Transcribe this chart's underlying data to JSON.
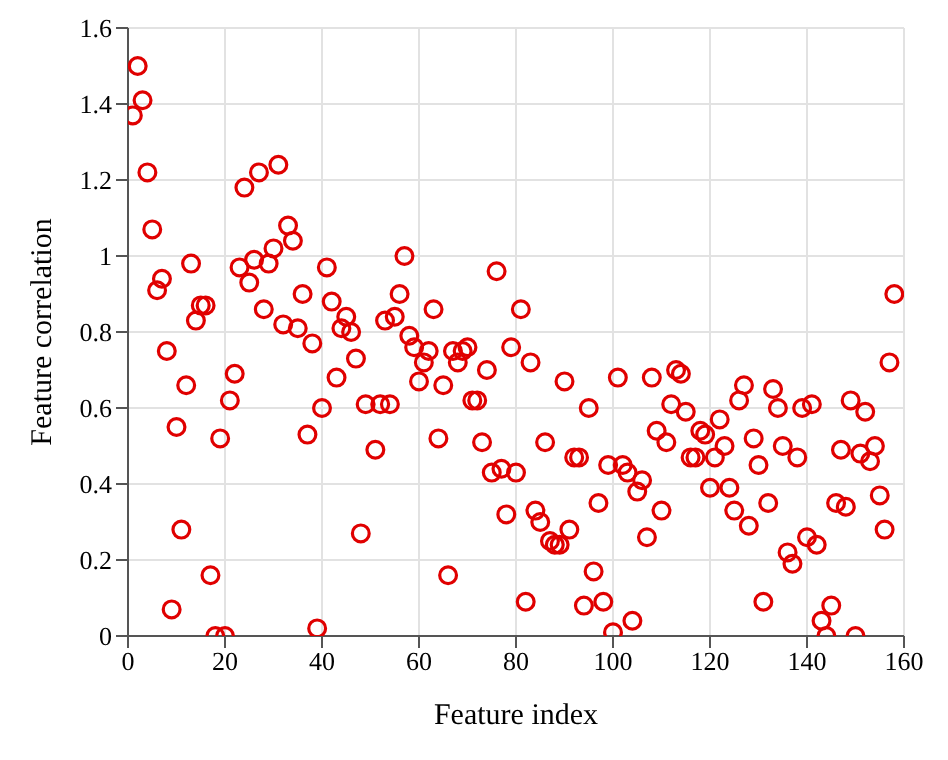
{
  "chart_data": {
    "type": "scatter",
    "xlabel": "Feature index",
    "ylabel": "Feature correlation",
    "xlim": [
      0,
      160
    ],
    "xticks": [
      0,
      20,
      40,
      60,
      80,
      100,
      120,
      140,
      160
    ],
    "ylim": [
      0,
      1.6
    ],
    "yticks": [
      0,
      0.2,
      0.4,
      0.6,
      0.8,
      1,
      1.2,
      1.4,
      1.6
    ],
    "grid": true,
    "marker": "circle",
    "legend": false,
    "series": [
      {
        "color": "#e00000",
        "x": [
          1,
          2,
          3,
          4,
          5,
          6,
          7,
          8,
          9,
          10,
          11,
          12,
          13,
          14,
          15,
          16,
          17,
          18,
          19,
          20,
          21,
          22,
          23,
          24,
          25,
          26,
          27,
          28,
          29,
          30,
          31,
          32,
          33,
          34,
          35,
          36,
          37,
          38,
          39,
          40,
          41,
          42,
          43,
          44,
          45,
          46,
          47,
          48,
          49,
          51,
          52,
          53,
          54,
          55,
          56,
          57,
          58,
          59,
          60,
          61,
          62,
          63,
          64,
          65,
          66,
          67,
          68,
          69,
          70,
          71,
          72,
          73,
          74,
          75,
          76,
          77,
          78,
          79,
          80,
          81,
          82,
          83,
          84,
          85,
          86,
          87,
          88,
          89,
          90,
          91,
          92,
          93,
          94,
          95,
          96,
          97,
          98,
          99,
          100,
          101,
          102,
          103,
          104,
          105,
          106,
          107,
          108,
          109,
          110,
          111,
          112,
          113,
          114,
          115,
          116,
          117,
          118,
          119,
          120,
          121,
          122,
          123,
          124,
          125,
          126,
          127,
          128,
          129,
          130,
          131,
          132,
          133,
          134,
          135,
          136,
          137,
          138,
          139,
          140,
          141,
          142,
          143,
          144,
          145,
          146,
          147,
          148,
          149,
          150,
          151,
          152,
          153,
          154,
          155,
          156,
          157,
          158
        ],
        "values": [
          1.37,
          1.5,
          1.41,
          1.22,
          1.07,
          0.91,
          0.94,
          0.75,
          0.07,
          0.55,
          0.28,
          0.66,
          0.98,
          0.83,
          0.87,
          0.87,
          0.16,
          0.0,
          0.52,
          0.0,
          0.62,
          0.69,
          0.97,
          1.18,
          0.93,
          0.99,
          1.22,
          0.86,
          0.98,
          1.02,
          1.24,
          0.82,
          1.08,
          1.04,
          0.81,
          0.9,
          0.53,
          0.77,
          0.02,
          0.6,
          0.97,
          0.88,
          0.68,
          0.81,
          0.84,
          0.8,
          0.73,
          0.27,
          0.61,
          0.49,
          0.61,
          0.83,
          0.61,
          0.84,
          0.9,
          1.0,
          0.79,
          0.76,
          0.67,
          0.72,
          0.75,
          0.86,
          0.52,
          0.66,
          0.16,
          0.75,
          0.72,
          0.75,
          0.76,
          0.62,
          0.62,
          0.51,
          0.7,
          0.43,
          0.96,
          0.44,
          0.32,
          0.76,
          0.43,
          0.86,
          0.09,
          0.72,
          0.33,
          0.3,
          0.51,
          0.25,
          0.24,
          0.24,
          0.67,
          0.28,
          0.47,
          0.47,
          0.08,
          0.6,
          0.17,
          0.35,
          0.09,
          0.45,
          0.01,
          0.68,
          0.45,
          0.43,
          0.04,
          0.38,
          0.41,
          0.26,
          0.68,
          0.54,
          0.33,
          0.51,
          0.61,
          0.7,
          0.69,
          0.59,
          0.47,
          0.47,
          0.54,
          0.53,
          0.39,
          0.47,
          0.57,
          0.5,
          0.39,
          0.33,
          0.62,
          0.66,
          0.29,
          0.52,
          0.45,
          0.09,
          0.35,
          0.65,
          0.6,
          0.5,
          0.22,
          0.19,
          0.47,
          0.6,
          0.26,
          0.61,
          0.24,
          0.04,
          0.0,
          0.08,
          0.35,
          0.49,
          0.34,
          0.62,
          0.0,
          0.48,
          0.59,
          0.46,
          0.5,
          0.37,
          0.28,
          0.72,
          0.9
        ]
      }
    ]
  }
}
